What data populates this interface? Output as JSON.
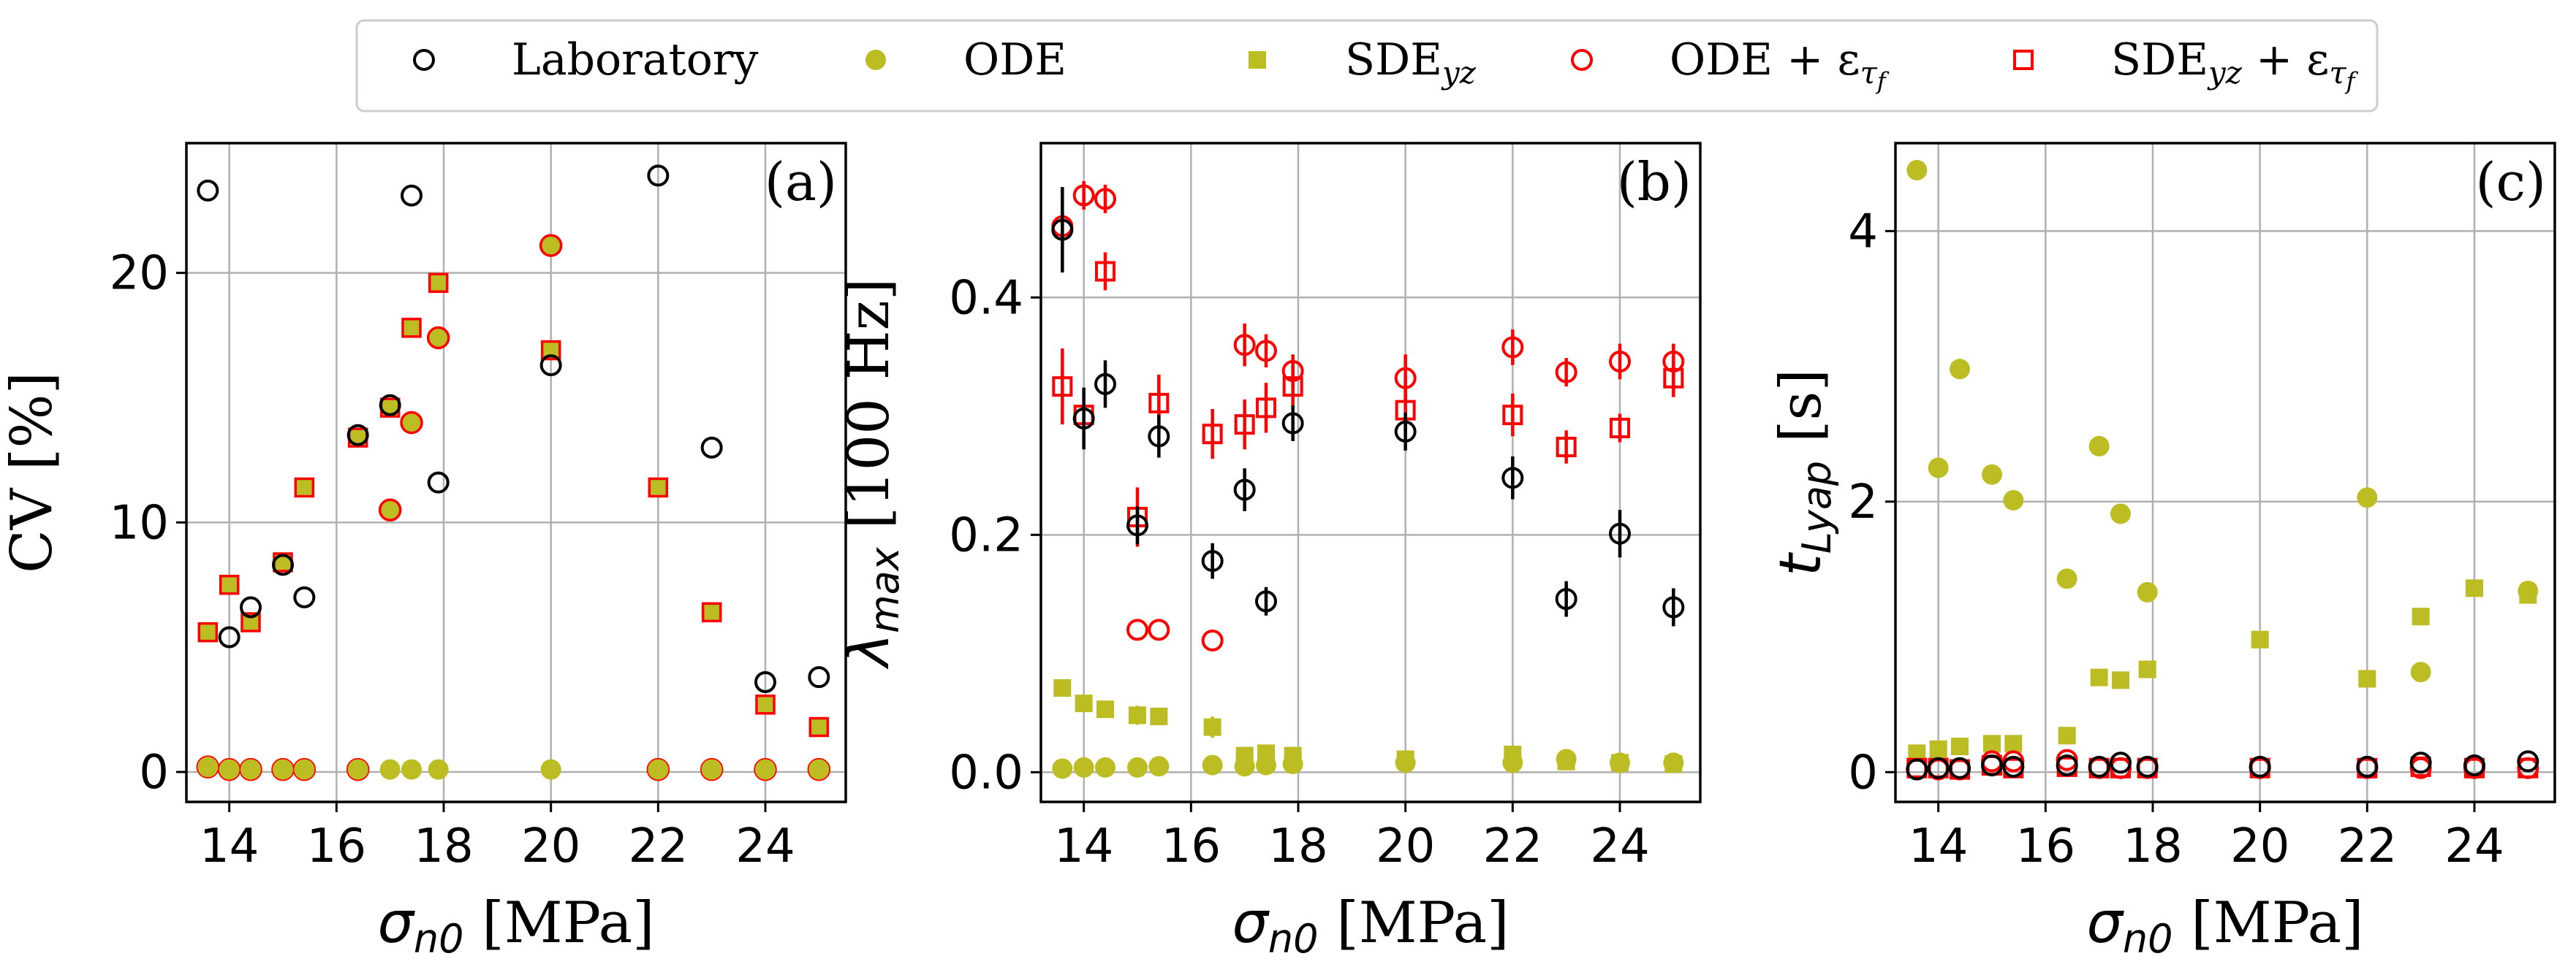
{
  "colors": {
    "lab": "#000000",
    "ode": "#bcbd22",
    "sde": "#bcbd22",
    "ode_eps": "#ff0000",
    "sde_eps": "#ff0000"
  },
  "legend": {
    "placement": "top-center",
    "items": [
      {
        "key": "lab",
        "marker": "circle-open",
        "label": "Laboratory"
      },
      {
        "key": "ode",
        "marker": "circle-filled",
        "label": "ODE"
      },
      {
        "key": "sde",
        "marker": "square-filled",
        "label": "SDE",
        "sub": "yz"
      },
      {
        "key": "ode_eps",
        "marker": "circle-open",
        "label": "ODE + ε",
        "sub2": "τ",
        "sub3": "f"
      },
      {
        "key": "sde_eps",
        "marker": "square-open",
        "label": "SDE",
        "sub": "yz",
        "suffix": " + ε",
        "sub2": "τ",
        "sub3": "f"
      }
    ]
  },
  "chart_data": [
    {
      "type": "scatter",
      "panel": "(a)",
      "xlabel": "σ",
      "xlabel_sub": "n0",
      "xlabel_unit": " [MPa]",
      "ylabel": "CV [%]",
      "xlim": [
        13.2,
        25.5
      ],
      "ylim": [
        -1.2,
        25.2
      ],
      "xticks": [
        14,
        16,
        18,
        20,
        22,
        24
      ],
      "yticks": [
        0,
        10,
        20
      ],
      "grid": true,
      "x": [
        13.6,
        14.0,
        14.4,
        15.0,
        15.4,
        16.4,
        17.0,
        17.4,
        17.9,
        20.0,
        22.0,
        23.0,
        24.0,
        25.0
      ],
      "series": [
        {
          "key": "ode_eps",
          "style": "circle-filled-redge",
          "values": [
            0.2,
            0.1,
            0.1,
            0.1,
            0.1,
            0.1,
            10.5,
            14.0,
            17.4,
            21.1,
            0.1,
            0.1,
            0.1,
            0.1
          ]
        },
        {
          "key": "ode",
          "style": "circle-filled",
          "values": [
            0.2,
            0.1,
            0.1,
            0.1,
            0.1,
            0.1,
            0.1,
            0.1,
            0.1,
            0.1,
            0.1,
            0.1,
            0.1,
            0.1
          ]
        },
        {
          "key": "sde_eps",
          "style": "square-filled-redge",
          "values": [
            5.6,
            7.5,
            6.0,
            8.4,
            11.4,
            13.4,
            14.6,
            17.8,
            19.6,
            16.9,
            11.4,
            6.4,
            2.7,
            1.8
          ]
        },
        {
          "key": "lab",
          "style": "circle-open",
          "values": [
            23.3,
            5.4,
            6.6,
            8.3,
            7.0,
            13.5,
            14.7,
            23.1,
            11.6,
            16.3,
            23.9,
            13.0,
            3.6,
            3.8
          ]
        }
      ]
    },
    {
      "type": "scatter",
      "panel": "(b)",
      "xlabel": "σ",
      "xlabel_sub": "n0",
      "xlabel_unit": " [MPa]",
      "ylabel": "λ",
      "ylabel_sub": "max",
      "ylabel_unit": " [100 Hz]",
      "xlim": [
        13.2,
        25.5
      ],
      "ylim": [
        -0.025,
        0.53
      ],
      "xticks": [
        14,
        16,
        18,
        20,
        22,
        24
      ],
      "yticks": [
        0.0,
        0.2,
        0.4
      ],
      "ytick_labels": [
        "0.0",
        "0.2",
        "0.4"
      ],
      "grid": true,
      "series": [
        {
          "key": "ode",
          "style": "circle-filled",
          "x": [
            13.6,
            14.0,
            14.4,
            15.0,
            15.4,
            16.4,
            17.0,
            17.4,
            17.9,
            20.0,
            22.0,
            23.0,
            24.0,
            25.0
          ],
          "values": [
            0.003,
            0.004,
            0.004,
            0.004,
            0.005,
            0.006,
            0.005,
            0.006,
            0.007,
            0.008,
            0.008,
            0.011,
            0.008,
            0.008
          ]
        },
        {
          "key": "sde",
          "style": "square-filled",
          "x": [
            13.6,
            14.0,
            14.4,
            15.0,
            15.4,
            16.4,
            17.0,
            17.4,
            17.9,
            20.0,
            22.0,
            23.0,
            24.0,
            25.0
          ],
          "values": [
            0.071,
            0.058,
            0.053,
            0.048,
            0.047,
            0.038,
            0.014,
            0.016,
            0.014,
            0.011,
            0.015,
            0.009,
            0.008,
            0.007
          ],
          "err": [
            0,
            0,
            0,
            0.008,
            0.006,
            0.009,
            0,
            0,
            0,
            0,
            0,
            0,
            0,
            0
          ]
        },
        {
          "key": "ode_eps",
          "style": "circle-open",
          "x": [
            13.6,
            14.0,
            14.4,
            15.0,
            15.4,
            16.4,
            17.0,
            17.4,
            17.9,
            20.0,
            22.0,
            23.0,
            24.0,
            25.0
          ],
          "values": [
            0.46,
            0.486,
            0.483,
            0.12,
            0.12,
            0.111,
            0.36,
            0.355,
            0.338,
            0.332,
            0.358,
            0.337,
            0.346,
            0.346
          ],
          "err": [
            0.012,
            0.012,
            0.012,
            0,
            0,
            0,
            0.018,
            0.014,
            0.014,
            0.02,
            0.015,
            0.012,
            0.015,
            0.015
          ]
        },
        {
          "key": "sde_eps",
          "style": "square-open",
          "x": [
            13.6,
            14.0,
            14.4,
            15.0,
            15.4,
            16.4,
            17.0,
            17.4,
            17.9,
            20.0,
            22.0,
            23.0,
            24.0,
            25.0
          ],
          "values": [
            0.325,
            0.301,
            0.422,
            0.215,
            0.311,
            0.285,
            0.293,
            0.307,
            0.325,
            0.305,
            0.301,
            0.274,
            0.29,
            0.332
          ],
          "err": [
            0.032,
            0,
            0.016,
            0.025,
            0.024,
            0.021,
            0.021,
            0.021,
            0.016,
            0.018,
            0.018,
            0.014,
            0.012,
            0.016
          ]
        },
        {
          "key": "lab",
          "style": "circle-open",
          "x": [
            13.6,
            14.0,
            14.4,
            15.0,
            15.4,
            16.4,
            17.0,
            17.4,
            17.9,
            20.0,
            22.0,
            23.0,
            24.0,
            25.0
          ],
          "values": [
            0.457,
            0.298,
            0.327,
            0.208,
            0.283,
            0.178,
            0.238,
            0.144,
            0.294,
            0.287,
            0.248,
            0.146,
            0.201,
            0.139
          ],
          "err": [
            0.036,
            0.026,
            0.02,
            0.016,
            0.018,
            0.015,
            0.018,
            0.012,
            0.015,
            0.016,
            0.018,
            0.015,
            0.02,
            0.016
          ]
        }
      ]
    },
    {
      "type": "scatter",
      "panel": "(c)",
      "xlabel": "σ",
      "xlabel_sub": "n0",
      "xlabel_unit": " [MPa]",
      "ylabel": "t",
      "ylabel_sub": "Lyap",
      "ylabel_unit": " [s]",
      "xlim": [
        13.2,
        25.5
      ],
      "ylim": [
        -0.22,
        4.65
      ],
      "xticks": [
        14,
        16,
        18,
        20,
        22,
        24
      ],
      "yticks": [
        0,
        2,
        4
      ],
      "grid": true,
      "series": [
        {
          "key": "ode",
          "style": "circle-filled",
          "x": [
            13.6,
            14.0,
            14.4,
            15.0,
            15.4,
            16.4,
            17.0,
            17.4,
            17.9,
            22.0,
            23.0,
            25.0
          ],
          "values": [
            4.45,
            2.25,
            2.98,
            2.2,
            2.01,
            1.43,
            2.41,
            1.91,
            1.33,
            2.03,
            0.74,
            1.34
          ]
        },
        {
          "key": "sde",
          "style": "square-filled",
          "x": [
            13.6,
            14.0,
            14.4,
            15.0,
            15.4,
            16.4,
            17.0,
            17.4,
            17.9,
            20.0,
            22.0,
            23.0,
            24.0,
            25.0
          ],
          "values": [
            0.14,
            0.17,
            0.19,
            0.21,
            0.21,
            0.27,
            0.7,
            0.68,
            0.76,
            0.98,
            0.69,
            1.15,
            1.36,
            1.31
          ]
        },
        {
          "key": "ode_eps",
          "style": "circle-open",
          "x": [
            13.6,
            14.0,
            14.4,
            15.0,
            15.4,
            16.4,
            17.0,
            17.4,
            17.9,
            20.0,
            22.0,
            23.0,
            24.0,
            25.0
          ],
          "values": [
            0.02,
            0.02,
            0.02,
            0.08,
            0.08,
            0.09,
            0.03,
            0.03,
            0.03,
            0.03,
            0.03,
            0.03,
            0.03,
            0.03
          ]
        },
        {
          "key": "sde_eps",
          "style": "square-open",
          "x": [
            13.6,
            14.0,
            14.4,
            15.0,
            15.4,
            16.4,
            17.0,
            17.4,
            17.9,
            20.0,
            22.0,
            23.0,
            24.0,
            25.0
          ],
          "values": [
            0.03,
            0.03,
            0.02,
            0.05,
            0.03,
            0.04,
            0.03,
            0.03,
            0.03,
            0.03,
            0.03,
            0.04,
            0.03,
            0.03
          ]
        },
        {
          "key": "lab",
          "style": "circle-open",
          "x": [
            13.6,
            14.0,
            14.4,
            15.0,
            15.4,
            16.4,
            17.0,
            17.4,
            17.9,
            20.0,
            22.0,
            23.0,
            24.0,
            25.0
          ],
          "values": [
            0.02,
            0.03,
            0.03,
            0.05,
            0.04,
            0.05,
            0.04,
            0.07,
            0.04,
            0.04,
            0.04,
            0.07,
            0.05,
            0.08
          ]
        }
      ]
    }
  ]
}
